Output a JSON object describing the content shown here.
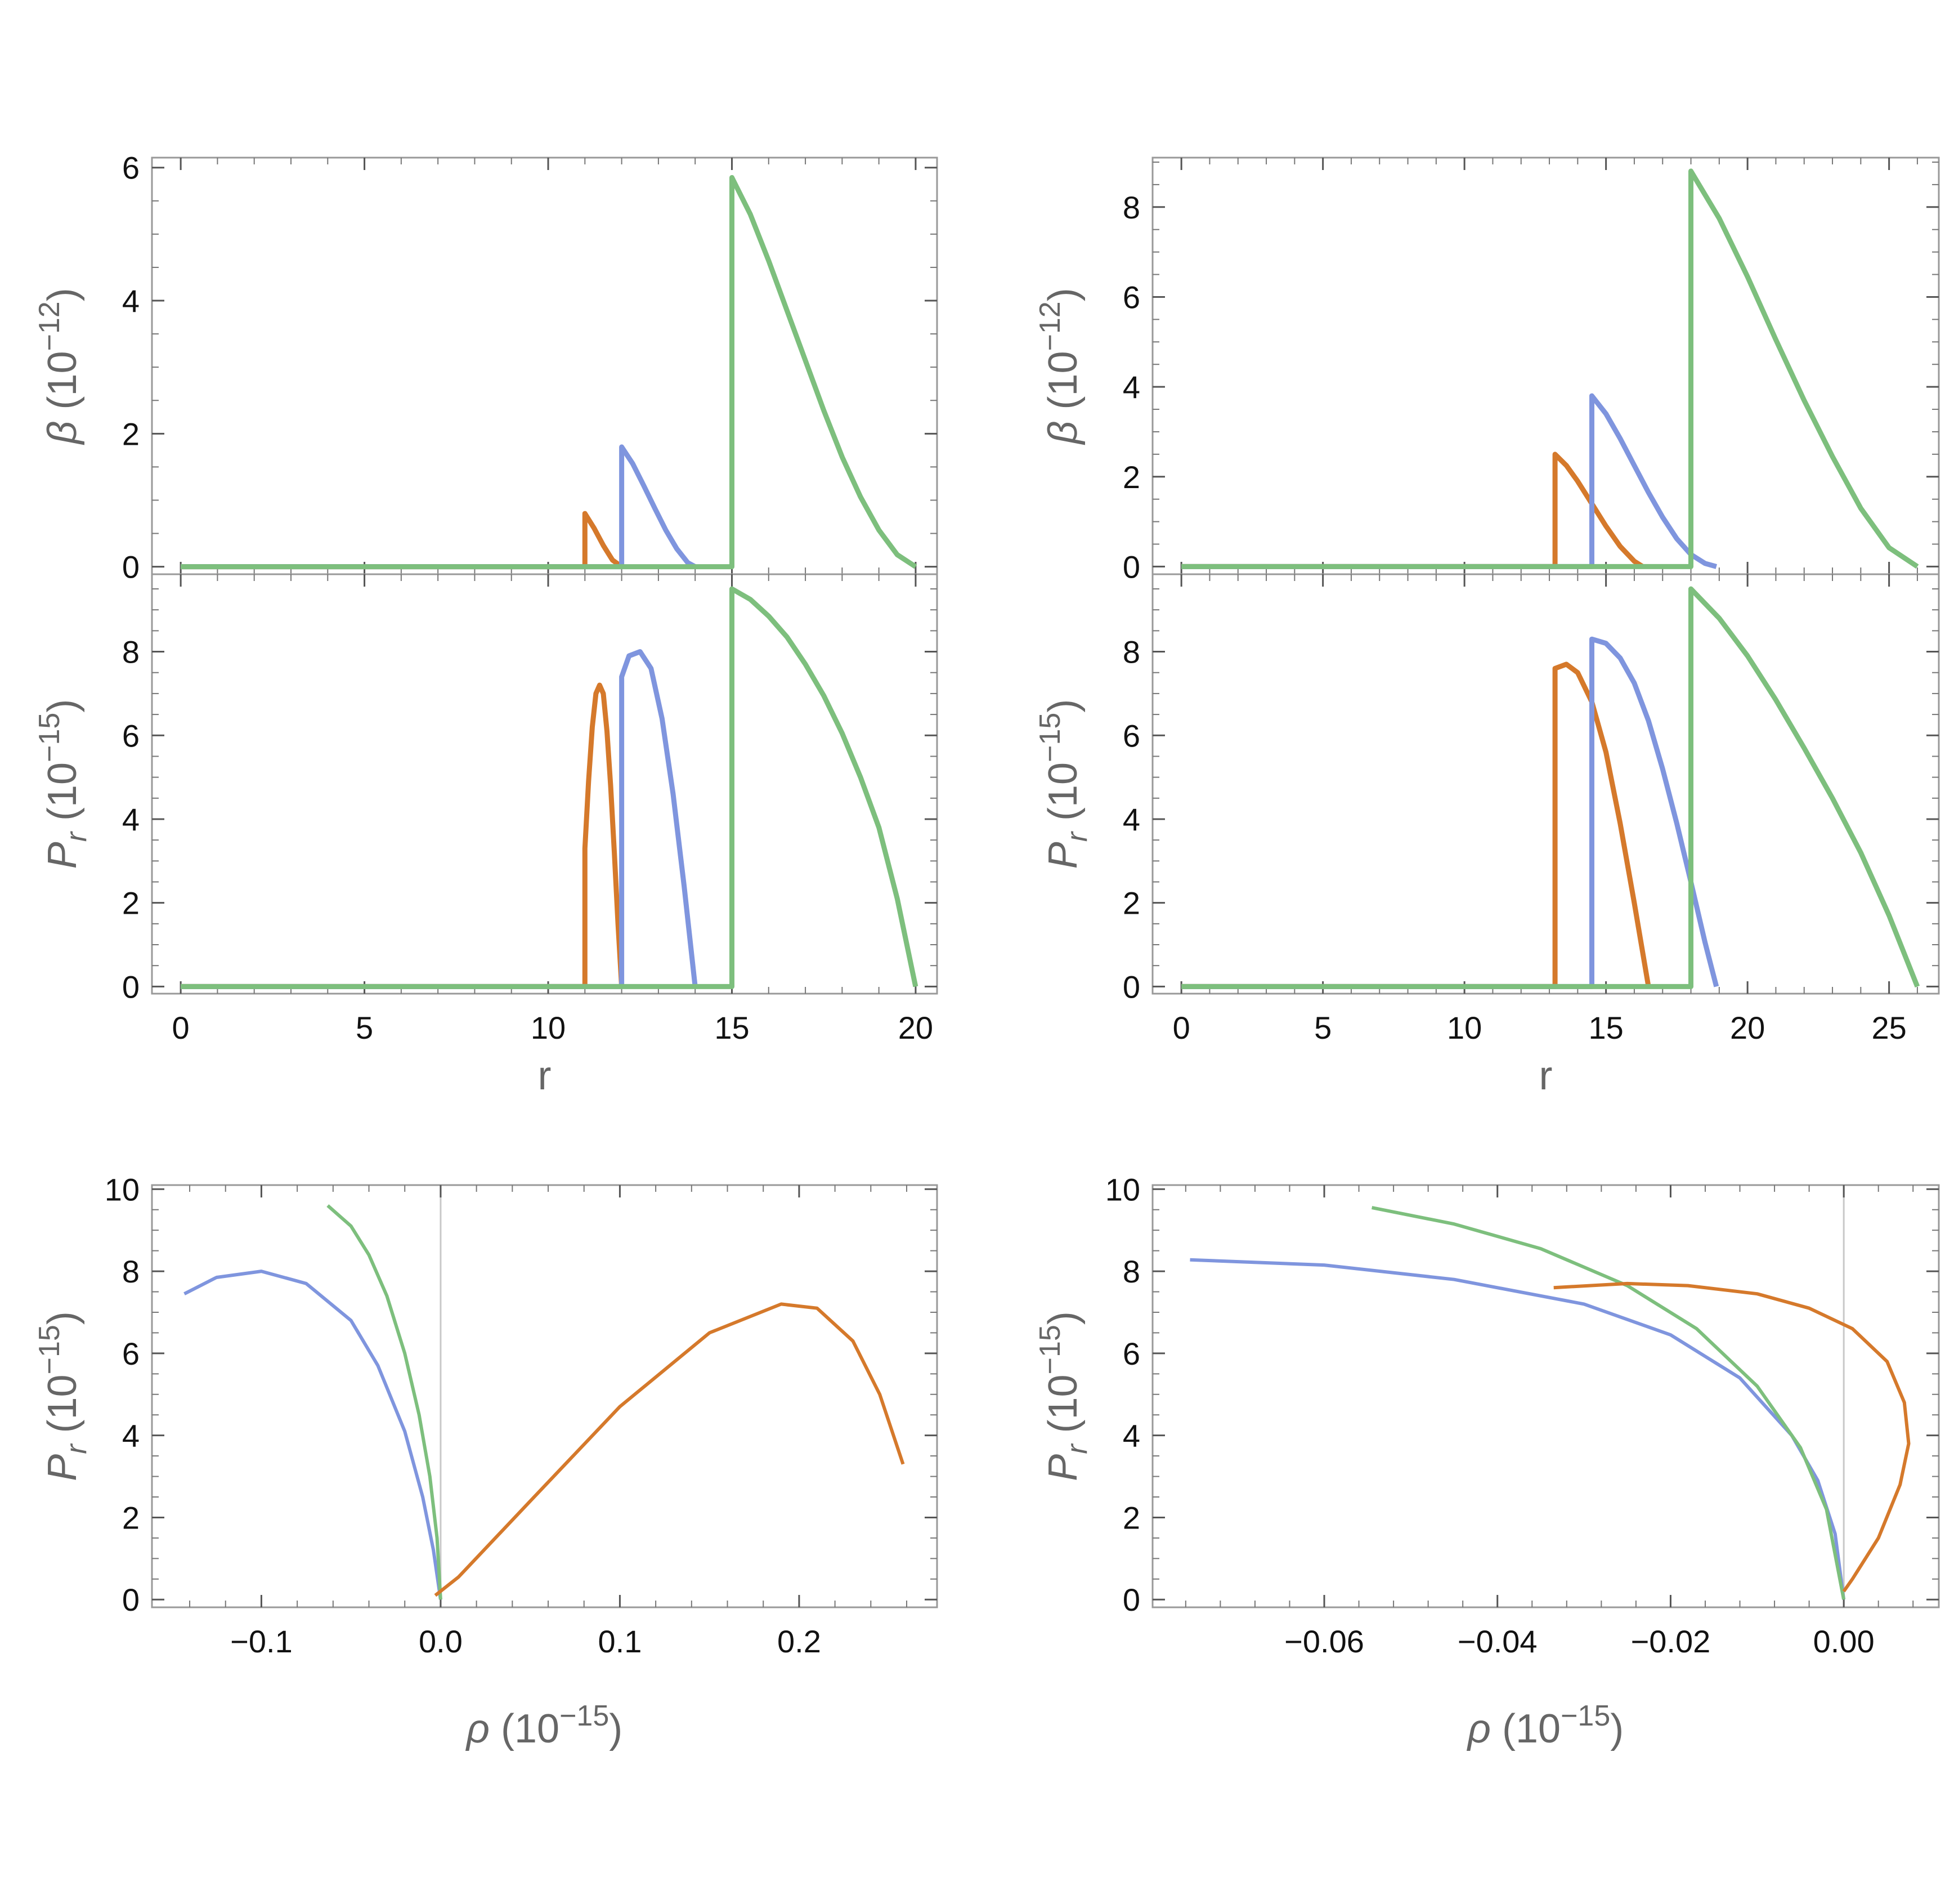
{
  "colors": {
    "orange": "#D5792B",
    "blue": "#7F95DE",
    "green": "#7DBF7D",
    "frame": "#999999",
    "zero_line": "#C8C8C8"
  },
  "chart_data": [
    {
      "id": "left-beta-vs-r",
      "type": "line",
      "xlim": [
        0,
        20
      ],
      "ylim": [
        0,
        6
      ],
      "xticks": [
        0,
        5,
        10,
        15,
        20
      ],
      "yticks": [
        0,
        2,
        4,
        6
      ],
      "xtick_labels": [
        "0",
        "5",
        "10",
        "15",
        "20"
      ],
      "ytick_labels": [
        "0",
        "2",
        "4",
        "6"
      ],
      "ylabel": {
        "symbol": "β",
        "sub": "",
        "paren_open": " (10",
        "exp": "−12",
        "paren_close": ")"
      },
      "xlabel": "",
      "series": [
        {
          "color": "orange",
          "x": [
            0,
            11,
            11,
            11.25,
            11.5,
            11.75,
            12
          ],
          "y": [
            0,
            0,
            0.8,
            0.58,
            0.32,
            0.1,
            0
          ]
        },
        {
          "color": "blue",
          "x": [
            0,
            12,
            12,
            12.3,
            12.6,
            12.9,
            13.2,
            13.5,
            13.8,
            14
          ],
          "y": [
            0,
            0,
            1.8,
            1.55,
            1.22,
            0.88,
            0.55,
            0.27,
            0.06,
            0
          ]
        },
        {
          "color": "green",
          "x": [
            0,
            15,
            15,
            15.5,
            16,
            16.5,
            17,
            17.5,
            18,
            18.5,
            19,
            19.5,
            20
          ],
          "y": [
            0,
            0,
            5.85,
            5.3,
            4.6,
            3.85,
            3.1,
            2.35,
            1.65,
            1.05,
            0.55,
            0.18,
            0
          ]
        }
      ]
    },
    {
      "id": "left-pr-vs-r",
      "type": "line",
      "xlim": [
        0,
        20
      ],
      "ylim": [
        0,
        9
      ],
      "xticks": [
        0,
        5,
        10,
        15,
        20
      ],
      "yticks": [
        0,
        2,
        4,
        6,
        8
      ],
      "xtick_labels": [
        "0",
        "5",
        "10",
        "15",
        "20"
      ],
      "ytick_labels": [
        "0",
        "2",
        "4",
        "6",
        "8"
      ],
      "ylabel": {
        "symbol": "P",
        "sub": "r",
        "paren_open": " (10",
        "exp": "−15",
        "paren_close": ")"
      },
      "xlabel": "r",
      "series": [
        {
          "color": "orange",
          "x": [
            0,
            11,
            11,
            11.1,
            11.2,
            11.3,
            11.4,
            11.5,
            11.6,
            11.7,
            11.8,
            11.9,
            12
          ],
          "y": [
            0,
            0,
            3.3,
            4.9,
            6.2,
            7.0,
            7.2,
            7.0,
            6.1,
            4.8,
            3.2,
            1.5,
            0
          ]
        },
        {
          "color": "blue",
          "x": [
            0,
            12,
            12,
            12.2,
            12.5,
            12.8,
            13.1,
            13.4,
            13.7,
            14
          ],
          "y": [
            0,
            0,
            7.4,
            7.9,
            8.0,
            7.6,
            6.4,
            4.6,
            2.4,
            0
          ]
        },
        {
          "color": "green",
          "x": [
            0,
            15,
            15,
            15.5,
            16,
            16.5,
            17,
            17.5,
            18,
            18.5,
            19,
            19.5,
            20
          ],
          "y": [
            0,
            0,
            9.5,
            9.25,
            8.85,
            8.35,
            7.7,
            6.95,
            6.05,
            5.0,
            3.8,
            2.1,
            0
          ]
        }
      ]
    },
    {
      "id": "right-beta-vs-r",
      "type": "line",
      "xlim": [
        0,
        26
      ],
      "ylim": [
        0,
        9
      ],
      "xticks": [
        0,
        5,
        10,
        15,
        20,
        25
      ],
      "yticks": [
        0,
        2,
        4,
        6,
        8
      ],
      "xtick_labels": [
        "0",
        "5",
        "10",
        "15",
        "20",
        "25"
      ],
      "ytick_labels": [
        "0",
        "2",
        "4",
        "6",
        "8"
      ],
      "ylabel": {
        "symbol": "β",
        "sub": "",
        "paren_open": " (10",
        "exp": "−12",
        "paren_close": ")"
      },
      "xlabel": "",
      "series": [
        {
          "color": "orange",
          "x": [
            0,
            13.2,
            13.2,
            13.6,
            14,
            14.5,
            15,
            15.5,
            16,
            16.3
          ],
          "y": [
            0,
            0,
            2.5,
            2.25,
            1.9,
            1.4,
            0.9,
            0.45,
            0.12,
            0
          ]
        },
        {
          "color": "blue",
          "x": [
            0,
            14.5,
            14.5,
            15,
            15.5,
            16,
            16.5,
            17,
            17.5,
            18,
            18.5,
            18.9
          ],
          "y": [
            0,
            0,
            3.8,
            3.4,
            2.85,
            2.25,
            1.65,
            1.1,
            0.62,
            0.27,
            0.07,
            0
          ]
        },
        {
          "color": "green",
          "x": [
            0,
            18,
            18,
            19,
            20,
            21,
            22,
            23,
            24,
            25,
            26
          ],
          "y": [
            0,
            0,
            8.8,
            7.75,
            6.45,
            5.05,
            3.7,
            2.45,
            1.3,
            0.42,
            0
          ]
        }
      ]
    },
    {
      "id": "right-pr-vs-r",
      "type": "line",
      "xlim": [
        0,
        26
      ],
      "ylim": [
        0,
        9
      ],
      "xticks": [
        0,
        5,
        10,
        15,
        20,
        25
      ],
      "yticks": [
        0,
        2,
        4,
        6,
        8
      ],
      "xtick_labels": [
        "0",
        "5",
        "10",
        "15",
        "20",
        "25"
      ],
      "ytick_labels": [
        "0",
        "2",
        "4",
        "6",
        "8"
      ],
      "ylabel": {
        "symbol": "P",
        "sub": "r",
        "paren_open": " (10",
        "exp": "−15",
        "paren_close": ")"
      },
      "xlabel": "r",
      "series": [
        {
          "color": "orange",
          "x": [
            0,
            13.2,
            13.2,
            13.6,
            14,
            14.5,
            15,
            15.5,
            16,
            16.5
          ],
          "y": [
            0,
            0,
            7.6,
            7.7,
            7.5,
            6.8,
            5.6,
            3.9,
            2.0,
            0
          ]
        },
        {
          "color": "blue",
          "x": [
            0,
            14.5,
            14.5,
            15,
            15.5,
            16,
            16.5,
            17,
            17.5,
            18,
            18.5,
            18.9
          ],
          "y": [
            0,
            0,
            8.3,
            8.2,
            7.85,
            7.25,
            6.35,
            5.2,
            3.9,
            2.5,
            1.05,
            0
          ]
        },
        {
          "color": "green",
          "x": [
            0,
            18,
            18,
            19,
            20,
            21,
            22,
            23,
            24,
            25,
            26
          ],
          "y": [
            0,
            0,
            9.5,
            8.8,
            7.9,
            6.85,
            5.7,
            4.5,
            3.2,
            1.7,
            0
          ]
        }
      ]
    },
    {
      "id": "left-pr-vs-rho",
      "type": "line",
      "xlim": [
        -0.145,
        0.265
      ],
      "ylim": [
        0,
        10
      ],
      "xticks": [
        -0.1,
        0,
        0.1,
        0.2
      ],
      "yticks": [
        0,
        2,
        4,
        6,
        8,
        10
      ],
      "xtick_labels": [
        "−0.1",
        "0.0",
        "0.1",
        "0.2"
      ],
      "ytick_labels": [
        "0",
        "2",
        "4",
        "6",
        "8",
        "10"
      ],
      "ylabel": {
        "symbol": "P",
        "sub": "r",
        "paren_open": " (10",
        "exp": "−15",
        "paren_close": ")"
      },
      "xlabel": {
        "symbol": "ρ",
        "paren_open": " (10",
        "exp": "−15",
        "paren_close": ")"
      },
      "series": [
        {
          "color": "blue",
          "x": [
            -0.143,
            -0.125,
            -0.1,
            -0.075,
            -0.05,
            -0.035,
            -0.02,
            -0.01,
            -0.004,
            0
          ],
          "y": [
            7.45,
            7.85,
            8.0,
            7.7,
            6.8,
            5.7,
            4.1,
            2.5,
            1.2,
            0
          ]
        },
        {
          "color": "green",
          "x": [
            -0.063,
            -0.05,
            -0.04,
            -0.03,
            -0.02,
            -0.012,
            -0.006,
            -0.002,
            0
          ],
          "y": [
            9.6,
            9.1,
            8.4,
            7.4,
            6.0,
            4.5,
            3.0,
            1.5,
            0
          ]
        },
        {
          "color": "orange",
          "x": [
            -0.003,
            0.01,
            0.05,
            0.1,
            0.15,
            0.19,
            0.21,
            0.23,
            0.245,
            0.258
          ],
          "y": [
            0.1,
            0.55,
            2.4,
            4.7,
            6.5,
            7.2,
            7.1,
            6.3,
            5.0,
            3.3
          ]
        }
      ]
    },
    {
      "id": "right-pr-vs-rho",
      "type": "line",
      "xlim": [
        -0.0765,
        0.0085
      ],
      "ylim": [
        0,
        10
      ],
      "xticks": [
        -0.06,
        -0.04,
        -0.02,
        0
      ],
      "yticks": [
        0,
        2,
        4,
        6,
        8,
        10
      ],
      "xtick_labels": [
        "−0.06",
        "−0.04",
        "−0.02",
        "0.00"
      ],
      "ytick_labels": [
        "0",
        "2",
        "4",
        "6",
        "8",
        "10"
      ],
      "ylabel": {
        "symbol": "P",
        "sub": "r",
        "paren_open": " (10",
        "exp": "−15",
        "paren_close": ")"
      },
      "xlabel": {
        "symbol": "ρ",
        "paren_open": " (10",
        "exp": "−15",
        "paren_close": ")"
      },
      "series": [
        {
          "color": "blue",
          "x": [
            -0.0755,
            -0.06,
            -0.045,
            -0.03,
            -0.02,
            -0.012,
            -0.006,
            -0.003,
            -0.001,
            0
          ],
          "y": [
            8.28,
            8.15,
            7.8,
            7.2,
            6.45,
            5.4,
            4.0,
            2.9,
            1.6,
            0
          ]
        },
        {
          "color": "green",
          "x": [
            -0.0545,
            -0.045,
            -0.035,
            -0.025,
            -0.017,
            -0.01,
            -0.005,
            -0.002,
            0
          ],
          "y": [
            9.55,
            9.15,
            8.55,
            7.65,
            6.6,
            5.2,
            3.7,
            2.2,
            0
          ]
        },
        {
          "color": "orange",
          "x": [
            -0.0335,
            -0.025,
            -0.018,
            -0.01,
            -0.004,
            0.001,
            0.005,
            0.007,
            0.0075,
            0.0065,
            0.004,
            0.001,
            0
          ],
          "y": [
            7.6,
            7.7,
            7.65,
            7.45,
            7.1,
            6.6,
            5.8,
            4.8,
            3.8,
            2.8,
            1.5,
            0.5,
            0.2
          ]
        }
      ]
    }
  ]
}
